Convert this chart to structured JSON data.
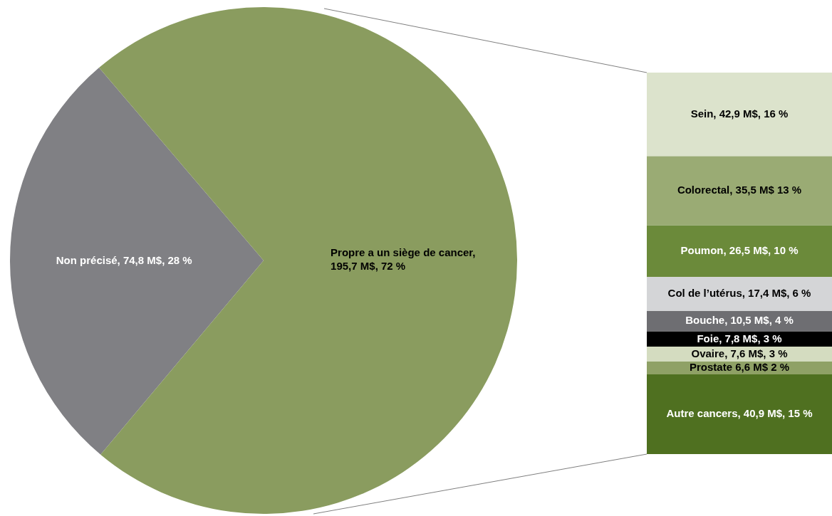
{
  "chart_data": [
    {
      "type": "pie",
      "categories": [
        "Non précisé, 74,8 M$, 28 %",
        "Propre a un siège de cancer, 195,7 M$, 72 %"
      ],
      "values": [
        74.8,
        195.7
      ],
      "colors": [
        "#808084",
        "#8a9c5f"
      ]
    },
    {
      "type": "bar",
      "stacked": true,
      "categories": [
        null
      ],
      "tick_labels": false,
      "series": [
        {
          "color": "#4f7020",
          "values": [
            40.9
          ],
          "value_labels": [
            "Autre cancers, 40,9 M$, 15 %"
          ]
        },
        {
          "color": "#8fa166",
          "values": [
            6.6
          ],
          "value_labels": [
            "Prostate 6,6 M$ 2 %"
          ]
        },
        {
          "color": "#d4dcc0",
          "values": [
            7.6
          ],
          "value_labels": [
            "Ovaire, 7,6 M$, 3 %"
          ]
        },
        {
          "color": "#000000",
          "values": [
            7.8
          ],
          "value_labels": [
            "Foie, 7,8 M$, 3 %"
          ]
        },
        {
          "color": "#6e6e72",
          "values": [
            10.5
          ],
          "value_labels": [
            "Bouche, 10,5 M$, 4 %"
          ]
        },
        {
          "color": "#d4d5d7",
          "values": [
            17.4
          ],
          "value_labels": [
            "Col de l’utérus, 17,4 M$, 6 %"
          ]
        },
        {
          "color": "#6b8a3a",
          "values": [
            26.5
          ],
          "value_labels": [
            "Poumon, 26,5 M$, 10 %"
          ]
        },
        {
          "color": "#9aab74",
          "values": [
            35.5
          ],
          "value_labels": [
            "Colorectal, 35,5 M$ 13 %"
          ]
        },
        {
          "color": "#dce3cc",
          "values": [
            42.9
          ],
          "value_labels": [
            "Sein, 42,9 M$, 16 %"
          ]
        }
      ]
    }
  ]
}
